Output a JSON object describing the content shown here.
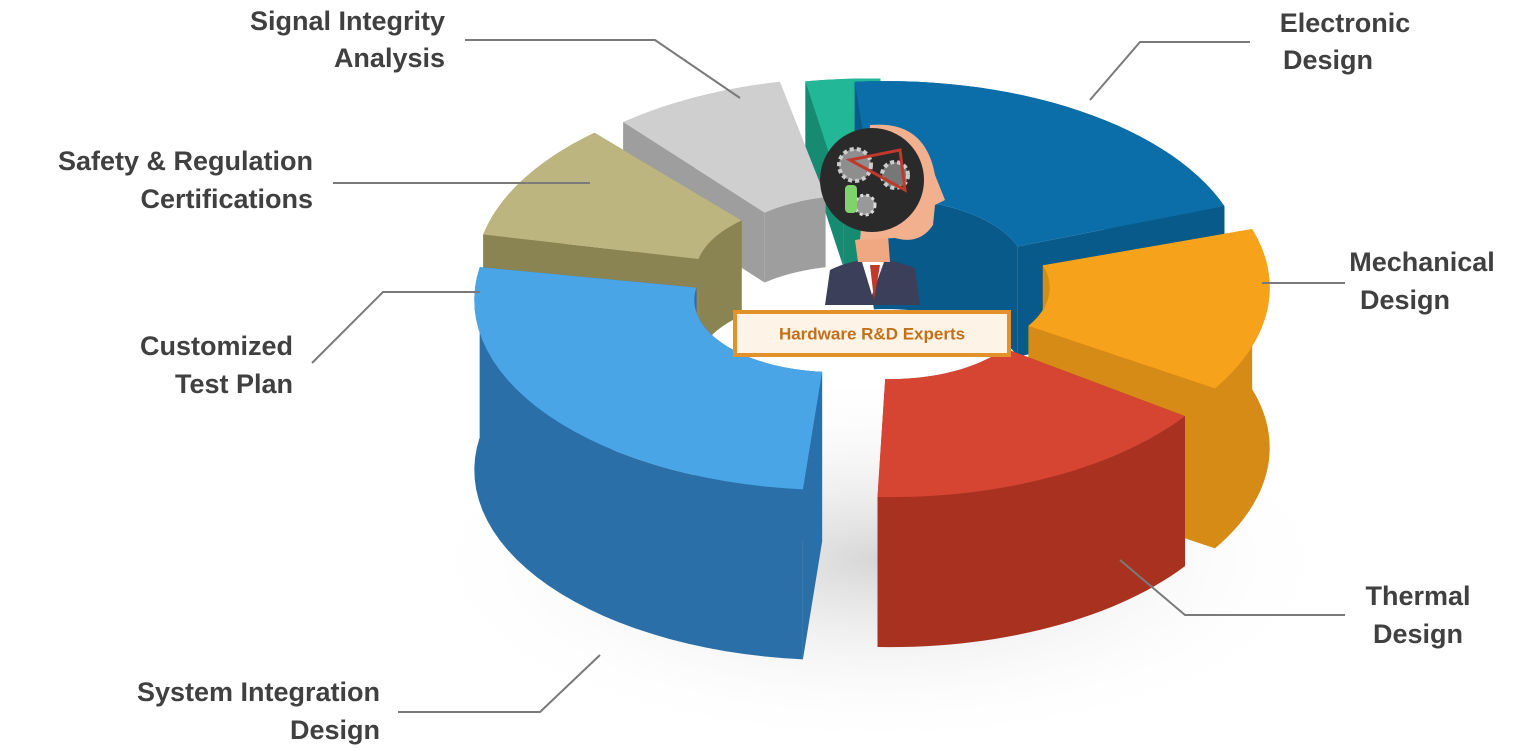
{
  "center_label": "Hardware R&D Experts",
  "segments": [
    {
      "lines": [
        "Signal Integrity",
        "Analysis"
      ]
    },
    {
      "lines": [
        "Safety & Regulation",
        "Certifications"
      ]
    },
    {
      "lines": [
        "Customized",
        "Test Plan"
      ]
    },
    {
      "lines": [
        "System Integration",
        "Design"
      ]
    },
    {
      "lines": [
        "Electronic",
        "Design"
      ]
    },
    {
      "lines": [
        "Mechanical",
        "Design"
      ]
    },
    {
      "lines": [
        "Thermal",
        "Design"
      ]
    }
  ]
}
